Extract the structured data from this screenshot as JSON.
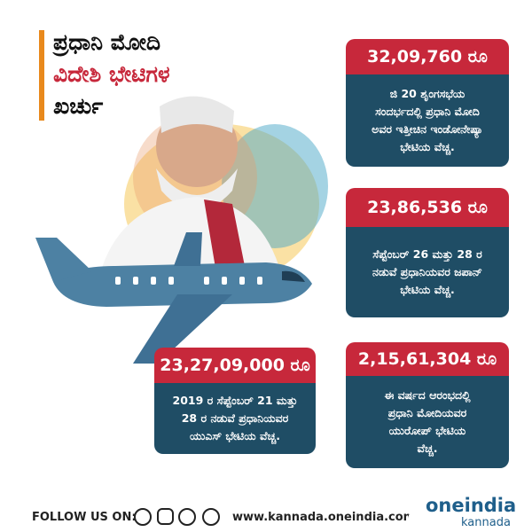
{
  "title": {
    "lines": [
      "ಪ್ರಧಾನಿ ಮೋದಿ",
      "ವಿದೇಶಿ ಭೇಟಿಗಳ",
      "ಖರ್ಚು"
    ]
  },
  "cards": [
    {
      "amount": "32,09,760 ರೂ",
      "lines": [
        "ಜಿ 20 ಶೃಂಗಸಭೆಯ",
        "ಸಂದರ್ಭದಲ್ಲಿ ಪ್ರಧಾನಿ ಮೋದಿ",
        "ಅವರ ಇತ್ತೀಚಿನ ಇಂಡೋನೇಷ್ಯಾ",
        "ಭೇಟಿಯ ವೆಚ್ಚ."
      ]
    },
    {
      "amount": "23,86,536 ರೂ",
      "lines": [
        "ಸೆಪ್ಟೆಂಬರ್ 26 ಮತ್ತು 28 ರ",
        "ನಡುವೆ ಪ್ರಧಾನಿಯವರ ಜಪಾನ್",
        "ಭೇಟಿಯ ವೆಚ್ಚ."
      ]
    },
    {
      "amount": "23,27,09,000 ರೂ",
      "lines": [
        "2019 ರ ಸೆಪ್ಟೆಂಬರ್ 21 ಮತ್ತು",
        "28 ರ ನಡುವೆ ಪ್ರಧಾನಿಯವರ",
        "ಯುಎಸ್ ಭೇಟಿಯ ವೆಚ್ಚ."
      ]
    },
    {
      "amount": "2,15,61,304 ರೂ",
      "lines": [
        "ಈ ವರ್ಷದ ಆರಂಭದಲ್ಲಿ",
        "ಪ್ರಧಾನಿ ಮೋದಿಯವರ",
        "ಯುರೋಪ್ ಭೇಟಿಯ",
        "ವೆಚ್ಚ."
      ]
    }
  ],
  "footer": {
    "follow": "FOLLOW US ON:",
    "url": "www.kannada.oneindia.com",
    "brand": "oneindia",
    "sub": "kannada"
  }
}
